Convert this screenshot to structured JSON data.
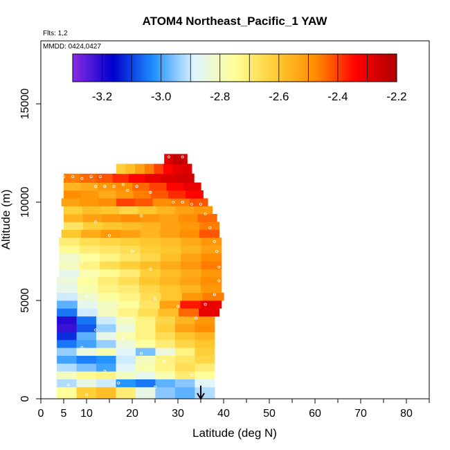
{
  "chart_data": {
    "type": "heatmap",
    "title": "ATOM4 Northeast_Pacific_1 YAW",
    "flights_note": "Flts: 1,2",
    "date_note": "MMDD: 0424,0427",
    "xlabel": "Latitude (deg N)",
    "ylabel": "Altitude (m)",
    "xlim": [
      0,
      85
    ],
    "ylim": [
      0,
      18000
    ],
    "x_ticks": [
      0,
      5,
      10,
      20,
      30,
      40,
      50,
      60,
      70,
      80
    ],
    "x_minor_ticks": [
      15,
      25,
      35,
      45,
      55,
      65,
      75,
      85
    ],
    "y_ticks": [
      0,
      5000,
      10000,
      15000
    ],
    "colorbar": {
      "min": -3.3,
      "max": -2.2,
      "tick_values": [
        -3.2,
        -3.0,
        -2.8,
        -2.6,
        -2.4,
        -2.2
      ],
      "tick_labels": [
        "-3.2",
        "-3.0",
        "-2.8",
        "-2.6",
        "-2.4",
        "-2.2"
      ],
      "colors": [
        "#8a2be2",
        "#0000cd",
        "#1e90ff",
        "#e0f4ff",
        "#ffff99",
        "#ffcc33",
        "#ff8c00",
        "#ff0000",
        "#b00000"
      ]
    },
    "marker": {
      "x": 35,
      "type": "arrow-down"
    },
    "layers": [
      {
        "alt": 400,
        "x0": 3.5,
        "x1": 38,
        "v": [
          -2.75,
          -2.62,
          -2.58,
          -2.7,
          -2.85,
          -2.95,
          -2.98,
          -2.92
        ]
      },
      {
        "alt": 800,
        "x0": 3.5,
        "x1": 38,
        "v": [
          -2.92,
          -2.85,
          -2.9,
          -3.02,
          -3.05,
          -2.98,
          -2.95,
          -2.88
        ]
      },
      {
        "alt": 1200,
        "x0": 3.5,
        "x1": 38,
        "v": [
          -2.8,
          -2.74,
          -2.72,
          -2.8,
          -2.86,
          -2.78,
          -2.7,
          -2.75
        ]
      },
      {
        "alt": 1600,
        "x0": 3.5,
        "x1": 38,
        "v": [
          -2.92,
          -2.96,
          -3.0,
          -2.88,
          -2.78,
          -2.72,
          -2.66,
          -2.7
        ]
      },
      {
        "alt": 2000,
        "x0": 3.5,
        "x1": 38,
        "v": [
          -3.0,
          -3.04,
          -3.02,
          -2.9,
          -2.8,
          -2.72,
          -2.68,
          -2.64
        ]
      },
      {
        "alt": 2400,
        "x0": 3.5,
        "x1": 38,
        "v": [
          -2.94,
          -2.84,
          -2.78,
          -2.88,
          -2.96,
          -2.84,
          -2.72,
          -2.62
        ]
      },
      {
        "alt": 2800,
        "x0": 3.5,
        "x1": 38,
        "v": [
          -3.05,
          -3.0,
          -2.94,
          -2.84,
          -2.76,
          -2.7,
          -2.64,
          -2.6
        ]
      },
      {
        "alt": 3200,
        "x0": 3.5,
        "x1": 38,
        "v": [
          -3.12,
          -2.98,
          -2.86,
          -2.78,
          -2.72,
          -2.66,
          -2.6,
          -2.56
        ]
      },
      {
        "alt": 3600,
        "x0": 3.5,
        "x1": 38,
        "v": [
          -3.22,
          -3.08,
          -2.94,
          -2.84,
          -2.72,
          -2.62,
          -2.52,
          -2.48
        ]
      },
      {
        "alt": 4000,
        "x0": 3.5,
        "x1": 38,
        "v": [
          -3.2,
          -3.05,
          -2.9,
          -2.8,
          -2.72,
          -2.64,
          -2.56,
          -2.5
        ]
      },
      {
        "alt": 4400,
        "x0": 3.5,
        "x1": 39,
        "v": [
          -3.05,
          -2.9,
          -2.8,
          -2.72,
          -2.66,
          -2.58,
          -2.44,
          -2.3
        ]
      },
      {
        "alt": 4800,
        "x0": 3.5,
        "x1": 39.5,
        "v": [
          -2.98,
          -2.86,
          -2.8,
          -2.76,
          -2.68,
          -2.52,
          -2.36,
          -2.3
        ]
      },
      {
        "alt": 5200,
        "x0": 3.5,
        "x1": 40,
        "v": [
          -2.9,
          -2.82,
          -2.76,
          -2.72,
          -2.66,
          -2.6,
          -2.5,
          -2.46
        ]
      },
      {
        "alt": 5600,
        "x0": 3.5,
        "x1": 39.5,
        "v": [
          -2.86,
          -2.78,
          -2.72,
          -2.7,
          -2.64,
          -2.6,
          -2.56,
          -2.5
        ]
      },
      {
        "alt": 6000,
        "x0": 3.5,
        "x1": 39.5,
        "v": [
          -2.84,
          -2.76,
          -2.7,
          -2.66,
          -2.6,
          -2.56,
          -2.52,
          -2.48
        ]
      },
      {
        "alt": 6400,
        "x0": 4,
        "x1": 39.5,
        "v": [
          -2.86,
          -2.78,
          -2.74,
          -2.7,
          -2.62,
          -2.58,
          -2.54,
          -2.5
        ]
      },
      {
        "alt": 6800,
        "x0": 4,
        "x1": 39.5,
        "v": [
          -2.8,
          -2.72,
          -2.66,
          -2.62,
          -2.58,
          -2.54,
          -2.5,
          -2.46
        ]
      },
      {
        "alt": 7200,
        "x0": 4,
        "x1": 39.5,
        "v": [
          -2.82,
          -2.76,
          -2.72,
          -2.68,
          -2.64,
          -2.58,
          -2.52,
          -2.48
        ]
      },
      {
        "alt": 7600,
        "x0": 4,
        "x1": 39.5,
        "v": [
          -2.74,
          -2.7,
          -2.68,
          -2.66,
          -2.62,
          -2.6,
          -2.56,
          -2.52
        ]
      },
      {
        "alt": 8000,
        "x0": 4,
        "x1": 39.5,
        "v": [
          -2.7,
          -2.66,
          -2.64,
          -2.62,
          -2.6,
          -2.58,
          -2.54,
          -2.5
        ]
      },
      {
        "alt": 8400,
        "x0": 4.5,
        "x1": 39,
        "v": [
          -2.6,
          -2.54,
          -2.5,
          -2.52,
          -2.56,
          -2.52,
          -2.48,
          -2.42
        ]
      },
      {
        "alt": 8800,
        "x0": 5,
        "x1": 39,
        "v": [
          -2.68,
          -2.62,
          -2.6,
          -2.58,
          -2.56,
          -2.52,
          -2.5,
          -2.46
        ]
      },
      {
        "alt": 9200,
        "x0": 5,
        "x1": 38.5,
        "v": [
          -2.56,
          -2.52,
          -2.5,
          -2.48,
          -2.5,
          -2.52,
          -2.48,
          -2.44
        ]
      },
      {
        "alt": 9600,
        "x0": 5,
        "x1": 37.5,
        "v": [
          -2.62,
          -2.58,
          -2.6,
          -2.64,
          -2.6,
          -2.56,
          -2.52,
          -2.5
        ]
      },
      {
        "alt": 10000,
        "x0": 4.5,
        "x1": 36.5,
        "v": [
          -2.52,
          -2.5,
          -2.48,
          -2.4,
          -2.42,
          -2.48,
          -2.46,
          -2.42
        ]
      },
      {
        "alt": 10400,
        "x0": 5,
        "x1": 35.5,
        "v": [
          -2.48,
          -2.5,
          -2.54,
          -2.5,
          -2.46,
          -2.42,
          -2.38,
          -2.34
        ]
      },
      {
        "alt": 10800,
        "x0": 5,
        "x1": 35,
        "v": [
          -2.56,
          -2.54,
          -2.5,
          -2.48,
          -2.44,
          -2.4,
          -2.34,
          -2.3
        ]
      },
      {
        "alt": 11200,
        "x0": 5,
        "x1": 33.5,
        "v": [
          -2.46,
          -2.44,
          -2.42,
          -2.38,
          -2.34,
          -2.3,
          -2.28,
          -2.26
        ]
      },
      {
        "alt": 11700,
        "x0": 16.5,
        "x1": 33,
        "v": [
          -2.62,
          -2.58,
          -2.52,
          -2.46,
          -2.4,
          -2.34,
          -2.3,
          -2.28
        ]
      },
      {
        "alt": 12200,
        "x0": 27,
        "x1": 32,
        "v": [
          -2.3,
          -2.28,
          -2.26,
          -2.24,
          -2.24,
          -2.22,
          -2.24,
          -2.26
        ]
      }
    ],
    "points": [
      [
        5,
        11300
      ],
      [
        7,
        11300
      ],
      [
        9,
        11200
      ],
      [
        11,
        11300
      ],
      [
        13,
        11300
      ],
      [
        12,
        10800
      ],
      [
        14,
        10800
      ],
      [
        16,
        10800
      ],
      [
        18,
        10900
      ],
      [
        21,
        10800
      ],
      [
        29,
        10000
      ],
      [
        31,
        10000
      ],
      [
        33,
        9900
      ],
      [
        35,
        9900
      ],
      [
        36,
        9400
      ],
      [
        37,
        8700
      ],
      [
        38,
        8000
      ],
      [
        38.5,
        7500
      ],
      [
        39,
        6700
      ],
      [
        39,
        6000
      ],
      [
        38,
        5300
      ],
      [
        36,
        4800
      ],
      [
        34,
        4100
      ],
      [
        12,
        9000
      ],
      [
        15,
        8300
      ],
      [
        20,
        7500
      ],
      [
        9,
        6900
      ],
      [
        24,
        6600
      ],
      [
        10,
        5200
      ],
      [
        25,
        5100
      ],
      [
        30,
        4700
      ],
      [
        12,
        3500
      ],
      [
        18,
        3100
      ],
      [
        9,
        2600
      ],
      [
        22,
        2300
      ],
      [
        27,
        1900
      ],
      [
        14,
        1400
      ],
      [
        33,
        1200
      ],
      [
        6,
        700
      ],
      [
        17,
        800
      ],
      [
        25,
        600
      ],
      [
        10,
        200
      ],
      [
        28,
        12300
      ],
      [
        31,
        12300
      ],
      [
        26,
        12100
      ],
      [
        22,
        9300
      ],
      [
        19,
        10600
      ],
      [
        24,
        10500
      ]
    ]
  }
}
